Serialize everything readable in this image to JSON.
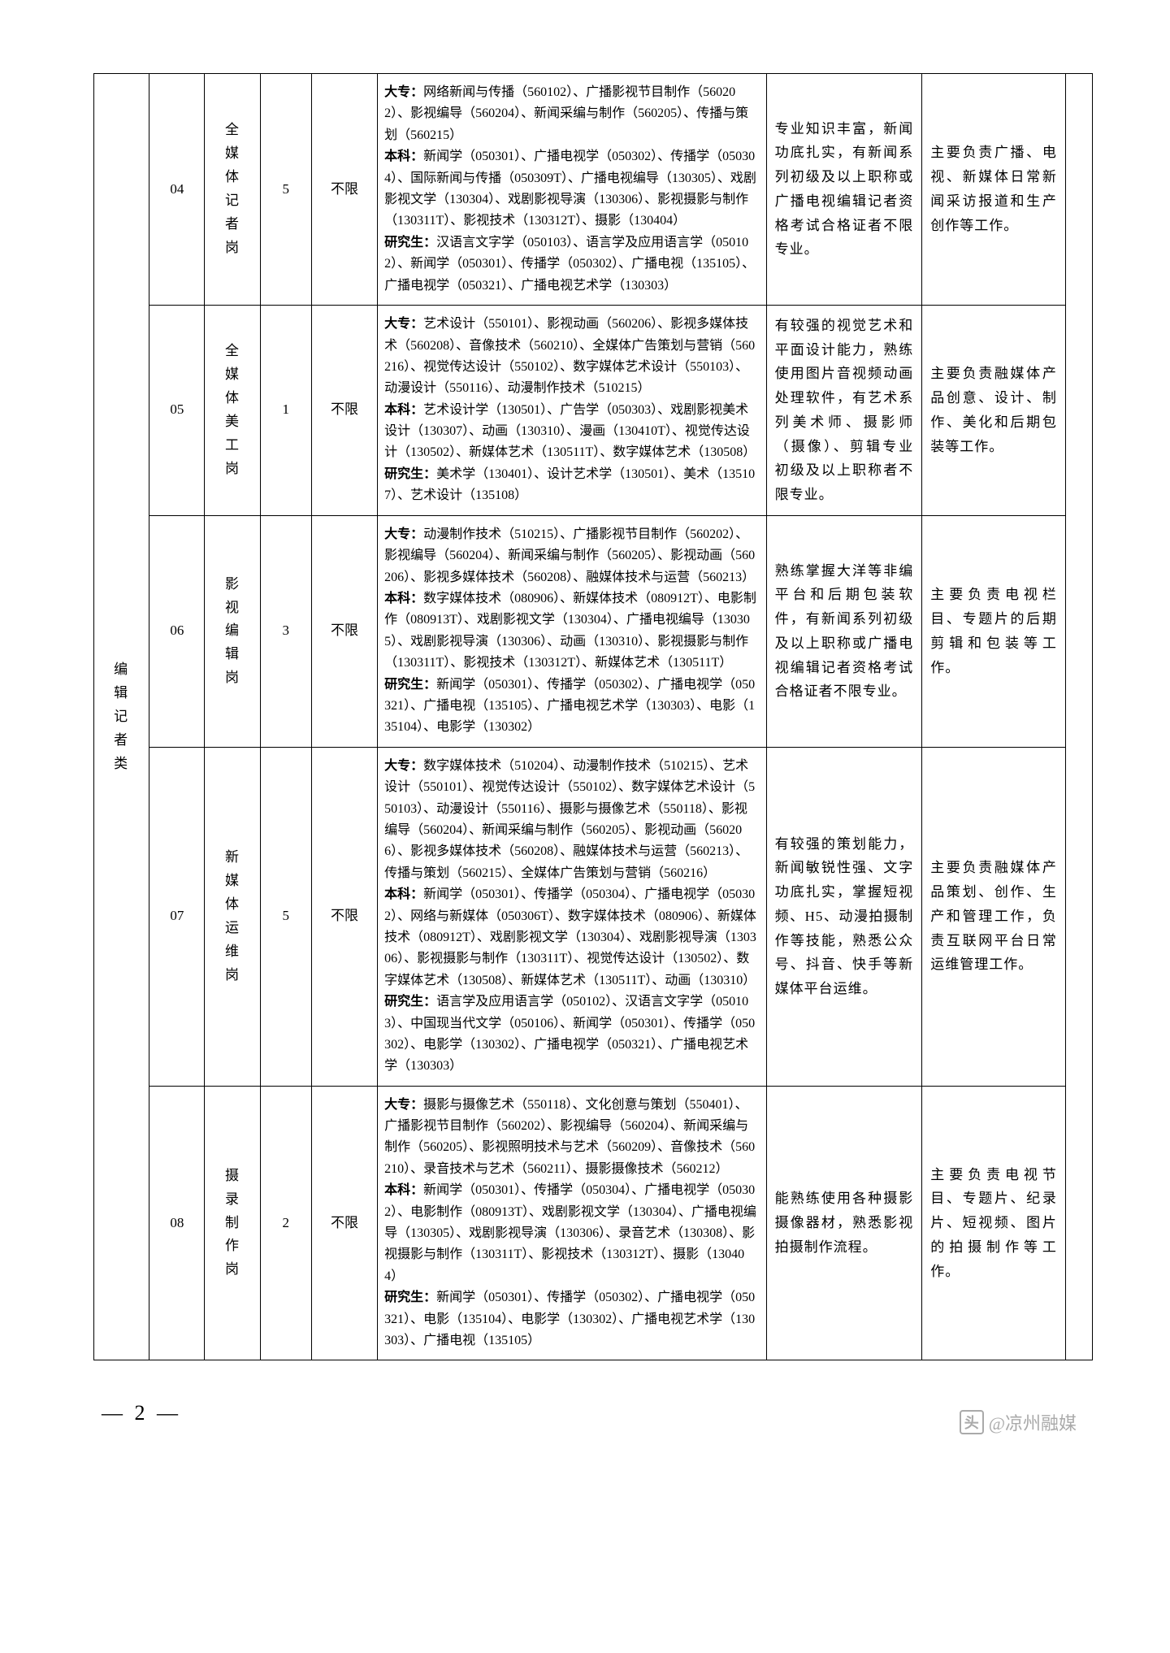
{
  "category_label": "编辑记者类",
  "rows": [
    {
      "code": "04",
      "post": "全媒体记者岗",
      "count": "5",
      "limit": "不限",
      "major": "<span class='bold'>大专：</span>网络新闻与传播（560102）、广播影视节目制作（560202）、影视编导（560204）、新闻采编与制作（560205）、传播与策划（560215）<br><span class='bold'>本科：</span>新闻学（050301）、广播电视学（050302）、传播学（050304）、国际新闻与传播（050309T）、广播电视编导（130305）、戏剧影视文学（130304）、戏剧影视导演（130306）、影视摄影与制作（130311T）、影视技术（130312T）、摄影（130404）<br><span class='bold'>研究生：</span>汉语言文字学（050103）、语言学及应用语言学（050102）、新闻学（050301）、传播学（050302）、广播电视（135105）、广播电视学（050321）、广播电视艺术学（130303）",
      "req": "专业知识丰富，新闻功底扎实，有新闻系列初级及以上职称或广播电视编辑记者资格考试合格证者不限专业。",
      "duty": "主要负责广播、电视、新媒体日常新闻采访报道和生产创作等工作。"
    },
    {
      "code": "05",
      "post": "全媒体美工岗",
      "count": "1",
      "limit": "不限",
      "major": "<span class='bold'>大专：</span>艺术设计（550101）、影视动画（560206）、影视多媒体技术（560208）、音像技术（560210）、全媒体广告策划与营销（560216）、视觉传达设计（550102）、数字媒体艺术设计（550103）、动漫设计（550116）、动漫制作技术（510215）<br><span class='bold'>本科：</span>艺术设计学（130501）、广告学（050303）、戏剧影视美术设计（130307）、动画（130310）、漫画（130410T）、视觉传达设计（130502）、新媒体艺术（130511T）、数字媒体艺术（130508）<br><span class='bold'>研究生：</span>美术学（130401）、设计艺术学（130501）、美术（135107）、艺术设计（135108）",
      "req": "有较强的视觉艺术和平面设计能力，熟练使用图片音视频动画处理软件，有艺术系列美术师、摄影师（摄像）、剪辑专业初级及以上职称者不限专业。",
      "duty": "主要负责融媒体产品创意、设计、制作、美化和后期包装等工作。"
    },
    {
      "code": "06",
      "post": "影视编辑岗",
      "count": "3",
      "limit": "不限",
      "major": "<span class='bold'>大专：</span>动漫制作技术（510215）、广播影视节目制作（560202）、影视编导（560204）、新闻采编与制作（560205）、影视动画（560206）、影视多媒体技术（560208）、融媒体技术与运营（560213）<br><span class='bold'>本科：</span>数字媒体技术（080906）、新媒体技术（080912T）、电影制作（080913T）、戏剧影视文学（130304）、广播电视编导（130305）、戏剧影视导演（130306）、动画（130310）、影视摄影与制作（130311T）、影视技术（130312T）、新媒体艺术（130511T）<br><span class='bold'>研究生：</span>新闻学（050301）、传播学（050302）、广播电视学（050321）、广播电视（135105）、广播电视艺术学（130303）、电影（135104）、电影学（130302）",
      "req": "熟练掌握大洋等非编平台和后期包装软件，有新闻系列初级及以上职称或广播电视编辑记者资格考试合格证者不限专业。",
      "duty": "主要负责电视栏目、专题片的后期剪辑和包装等工作。"
    },
    {
      "code": "07",
      "post": "新媒体运维岗",
      "count": "5",
      "limit": "不限",
      "major": "<span class='bold'>大专：</span>数字媒体技术（510204）、动漫制作技术（510215）、艺术设计（550101）、视觉传达设计（550102）、数字媒体艺术设计（550103）、动漫设计（550116）、摄影与摄像艺术（550118）、影视编导（560204）、新闻采编与制作（560205）、影视动画（560206）、影视多媒体技术（560208）、融媒体技术与运营（560213）、传播与策划（560215）、全媒体广告策划与营销（560216）<br><span class='bold'>本科：</span>新闻学（050301）、传播学（050304）、广播电视学（050302）、网络与新媒体（050306T）、数字媒体技术（080906）、新媒体技术（080912T）、戏剧影视文学（130304）、戏剧影视导演（130306）、影视摄影与制作（130311T）、视觉传达设计（130502）、数字媒体艺术（130508）、新媒体艺术（130511T）、动画（130310）<br><span class='bold'>研究生：</span>语言学及应用语言学（050102）、汉语言文字学（050103）、中国现当代文学（050106）、新闻学（050301）、传播学（050302）、电影学（130302）、广播电视学（050321）、广播电视艺术学（130303）",
      "req": "有较强的策划能力，新闻敏锐性强、文字功底扎实，掌握短视频、H5、动漫拍摄制作等技能，熟悉公众号、抖音、快手等新媒体平台运维。",
      "duty": "主要负责融媒体产品策划、创作、生产和管理工作，负责互联网平台日常运维管理工作。"
    },
    {
      "code": "08",
      "post": "摄录制作岗",
      "count": "2",
      "limit": "不限",
      "major": "<span class='bold'>大专：</span>摄影与摄像艺术（550118）、文化创意与策划（550401）、广播影视节目制作（560202）、影视编导（560204）、新闻采编与制作（560205）、影视照明技术与艺术（560209）、音像技术（560210）、录音技术与艺术（560211）、摄影摄像技术（560212）<br><span class='bold'>本科：</span>新闻学（050301）、传播学（050304）、广播电视学（050302）、电影制作（080913T）、戏剧影视文学（130304）、广播电视编导（130305）、戏剧影视导演（130306）、录音艺术（130308）、影视摄影与制作（130311T）、影视技术（130312T）、摄影（130404）<br><span class='bold'>研究生：</span>新闻学（050301）、传播学（050302）、广播电视学（050321）、电影（135104）、电影学（130302）、广播电视艺术学（130303）、广播电视（135105）",
      "req": "能熟练使用各种摄影摄像器材，熟悉影视拍摄制作流程。",
      "duty": "主要负责电视节目、专题片、纪录片、短视频、图片的拍摄制作等工作。"
    }
  ],
  "page_number": "— 2 —",
  "watermark": {
    "icon": "头",
    "text": "@凉州融媒"
  }
}
